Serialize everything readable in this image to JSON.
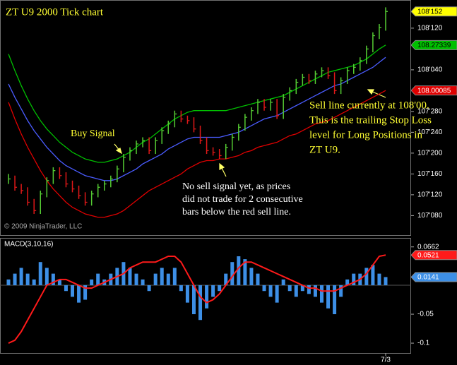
{
  "chart_data": [
    {
      "type": "ohlc",
      "title": "ZT U9 2000 Tick chart",
      "credit": "© 2009 NinjaTrader, LLC",
      "annotations": [
        {
          "lines": [
            "Buy Signal"
          ]
        },
        {
          "lines": [
            "Sell line currently at 108'00.",
            "This is the trailing Stop Loss",
            "level for Long Positions in",
            "ZT U9."
          ]
        },
        {
          "lines": [
            "No sell signal yet, as prices",
            "did not trade for 2 consecutive",
            "bars below the red sell line."
          ]
        }
      ],
      "categories": [
        null,
        null,
        null,
        null,
        null,
        null,
        null,
        null,
        null,
        null,
        null,
        null,
        null,
        null,
        null,
        null,
        null,
        null,
        null,
        null,
        null,
        null,
        null,
        null,
        null,
        null,
        null,
        null,
        null,
        null,
        null,
        null,
        null,
        null,
        null,
        null,
        null,
        null,
        null,
        null,
        null,
        null,
        null,
        null,
        null,
        null,
        null,
        null,
        null,
        null,
        null,
        null,
        null,
        null,
        null,
        null,
        null,
        null,
        null,
        "7/3"
      ],
      "high": [
        107.5,
        107.49,
        107.44,
        107.42,
        107.35,
        107.4,
        107.48,
        107.54,
        107.54,
        107.51,
        107.46,
        107.43,
        107.39,
        107.4,
        107.44,
        107.46,
        107.49,
        107.55,
        107.62,
        107.66,
        107.7,
        107.72,
        107.72,
        107.72,
        107.78,
        107.82,
        107.88,
        107.88,
        107.85,
        107.84,
        107.79,
        107.72,
        107.66,
        107.65,
        107.68,
        107.74,
        107.8,
        107.86,
        107.9,
        107.95,
        107.95,
        107.95,
        107.95,
        107.98,
        108.02,
        108.07,
        108.1,
        108.1,
        108.12,
        108.14,
        108.14,
        108.11,
        108.08,
        108.14,
        108.16,
        108.2,
        108.27,
        108.35,
        108.4,
        108.5
      ],
      "low": [
        107.44,
        107.4,
        107.38,
        107.31,
        107.26,
        107.26,
        107.36,
        107.44,
        107.47,
        107.42,
        107.39,
        107.35,
        107.31,
        107.31,
        107.36,
        107.4,
        107.42,
        107.45,
        107.51,
        107.58,
        107.62,
        107.66,
        107.62,
        107.62,
        107.68,
        107.74,
        107.78,
        107.81,
        107.8,
        107.75,
        107.68,
        107.62,
        107.61,
        107.59,
        107.59,
        107.64,
        107.7,
        107.76,
        107.82,
        107.86,
        107.88,
        107.88,
        107.83,
        107.83,
        107.94,
        107.98,
        108.03,
        108.04,
        108.04,
        108.08,
        108.07,
        107.98,
        107.98,
        108.04,
        108.1,
        108.12,
        108.16,
        108.23,
        108.31,
        108.36
      ],
      "close": [
        107.47,
        107.42,
        107.4,
        107.33,
        107.28,
        107.38,
        107.46,
        107.52,
        107.49,
        107.44,
        107.41,
        107.37,
        107.33,
        107.38,
        107.42,
        107.44,
        107.47,
        107.53,
        107.6,
        107.64,
        107.68,
        107.7,
        107.64,
        107.7,
        107.76,
        107.8,
        107.86,
        107.83,
        107.82,
        107.77,
        107.7,
        107.64,
        107.63,
        107.61,
        107.66,
        107.72,
        107.78,
        107.84,
        107.88,
        107.93,
        107.9,
        107.93,
        107.85,
        107.96,
        108.0,
        108.05,
        108.08,
        108.06,
        108.1,
        108.12,
        108.09,
        108.0,
        108.06,
        108.12,
        108.14,
        108.18,
        108.25,
        108.33,
        108.38,
        108.475
      ],
      "close_labels": [
        null,
        null,
        null,
        null,
        null,
        null,
        null,
        null,
        null,
        null,
        null,
        null,
        null,
        null,
        null,
        null,
        null,
        null,
        null,
        null,
        null,
        null,
        null,
        null,
        null,
        null,
        null,
        null,
        null,
        null,
        null,
        null,
        null,
        null,
        null,
        null,
        null,
        null,
        null,
        null,
        null,
        null,
        null,
        null,
        null,
        null,
        null,
        null,
        null,
        null,
        null,
        null,
        null,
        null,
        null,
        null,
        null,
        null,
        null,
        "108'152"
      ],
      "up_color": "#55cc33",
      "down_color": "#e01818",
      "flag_color": "#ffff00",
      "series": [
        {
          "type": "line",
          "color": "#00c000",
          "flag_last": true,
          "values": [
            108.22,
            108.12,
            108.03,
            107.95,
            107.88,
            107.82,
            107.77,
            107.73,
            107.69,
            107.66,
            107.63,
            107.61,
            107.59,
            107.58,
            107.57,
            107.57,
            107.58,
            107.59,
            107.61,
            107.63,
            107.66,
            107.69,
            107.71,
            107.74,
            107.77,
            107.8,
            107.83,
            107.85,
            107.87,
            107.88,
            107.88,
            107.88,
            107.88,
            107.88,
            107.88,
            107.89,
            107.9,
            107.91,
            107.92,
            107.93,
            107.94,
            107.95,
            107.96,
            107.97,
            107.99,
            108.01,
            108.03,
            108.05,
            108.07,
            108.09,
            108.11,
            108.12,
            108.13,
            108.14,
            108.15,
            108.17,
            108.19,
            108.22,
            108.25,
            108.27339
          ]
        },
        {
          "type": "line",
          "color": "#4a5cff",
          "values": [
            108.04,
            107.96,
            107.89,
            107.82,
            107.76,
            107.71,
            107.66,
            107.62,
            107.58,
            107.55,
            107.53,
            107.51,
            107.49,
            107.48,
            107.47,
            107.46,
            107.46,
            107.47,
            107.49,
            107.51,
            107.53,
            107.56,
            107.58,
            107.6,
            107.62,
            107.65,
            107.67,
            107.69,
            107.71,
            107.72,
            107.72,
            107.72,
            107.72,
            107.72,
            107.73,
            107.74,
            107.75,
            107.77,
            107.79,
            107.81,
            107.83,
            107.84,
            107.85,
            107.87,
            107.89,
            107.91,
            107.93,
            107.95,
            107.97,
            107.99,
            108.01,
            108.03,
            108.04,
            108.06,
            108.08,
            108.1,
            108.12,
            108.14,
            108.17,
            108.2
          ]
        },
        {
          "type": "line",
          "color": "#e00000",
          "flag_last": true,
          "values": [
            107.93,
            107.83,
            107.74,
            107.66,
            107.59,
            107.52,
            107.46,
            107.41,
            107.37,
            107.33,
            107.3,
            107.28,
            107.26,
            107.25,
            107.24,
            107.24,
            107.25,
            107.26,
            107.28,
            107.31,
            107.34,
            107.37,
            107.4,
            107.42,
            107.44,
            107.46,
            107.48,
            107.5,
            107.53,
            107.55,
            107.57,
            107.58,
            107.58,
            107.59,
            107.59,
            107.6,
            107.61,
            107.63,
            107.64,
            107.66,
            107.67,
            107.68,
            107.69,
            107.71,
            107.73,
            107.74,
            107.76,
            107.78,
            107.8,
            107.81,
            107.82,
            107.84,
            107.86,
            107.88,
            107.9,
            107.92,
            107.94,
            107.96,
            107.98,
            108.00085
          ]
        }
      ],
      "ylim": [
        107.133,
        108.544
      ],
      "yticks": [
        {
          "value": 108.375,
          "label": "108'120"
        },
        {
          "value": 108.125,
          "label": "108'040"
        },
        {
          "value": 107.875,
          "label": "107'280"
        },
        {
          "value": 107.75,
          "label": "107'240"
        },
        {
          "value": 107.625,
          "label": "107'200"
        },
        {
          "value": 107.5,
          "label": "107'160"
        },
        {
          "value": 107.375,
          "label": "107'120"
        },
        {
          "value": 107.25,
          "label": "107'080"
        }
      ]
    },
    {
      "type": "macd",
      "title": "MACD(3,10,16)",
      "series": [
        {
          "type": "bar",
          "color": "#3d8fe6",
          "flag_last": true,
          "values": [
            0.01,
            0.02,
            0.03,
            0.02,
            0.01,
            0.04,
            0.03,
            0.02,
            0.01,
            -0.01,
            -0.02,
            -0.03,
            -0.025,
            0.01,
            0.02,
            0.01,
            0.02,
            0.03,
            0.04,
            0.03,
            0.02,
            0.01,
            -0.01,
            0.02,
            0.03,
            0.02,
            0.03,
            -0.01,
            -0.03,
            -0.05,
            -0.06,
            -0.04,
            -0.02,
            -0.01,
            0.02,
            0.04,
            0.05,
            0.045,
            0.03,
            0.02,
            -0.01,
            -0.02,
            -0.03,
            0.01,
            -0.01,
            -0.02,
            -0.01,
            -0.015,
            -0.02,
            -0.03,
            -0.04,
            -0.05,
            -0.02,
            0.01,
            0.02,
            0.02,
            0.03,
            0.035,
            0.02,
            0.0141
          ]
        },
        {
          "type": "line",
          "color": "#ff1a1a",
          "flag_last": true,
          "values": [
            -0.1,
            -0.095,
            -0.08,
            -0.06,
            -0.04,
            -0.02,
            0.0,
            0.005,
            0.01,
            0.01,
            0.005,
            0.0,
            -0.005,
            -0.005,
            0.0,
            0.005,
            0.01,
            0.015,
            0.02,
            0.03,
            0.035,
            0.04,
            0.04,
            0.04,
            0.045,
            0.05,
            0.05,
            0.04,
            0.02,
            0.0,
            -0.02,
            -0.03,
            -0.025,
            -0.015,
            0.0,
            0.015,
            0.03,
            0.04,
            0.04,
            0.035,
            0.03,
            0.025,
            0.02,
            0.015,
            0.01,
            0.005,
            0.0,
            -0.005,
            -0.005,
            -0.01,
            -0.01,
            -0.01,
            -0.005,
            0.0,
            0.005,
            0.01,
            0.02,
            0.035,
            0.05,
            0.0521
          ]
        }
      ],
      "ylim": [
        -0.117,
        0.0817
      ],
      "yticks": [
        0.0662,
        -0.05,
        -0.1
      ]
    }
  ]
}
